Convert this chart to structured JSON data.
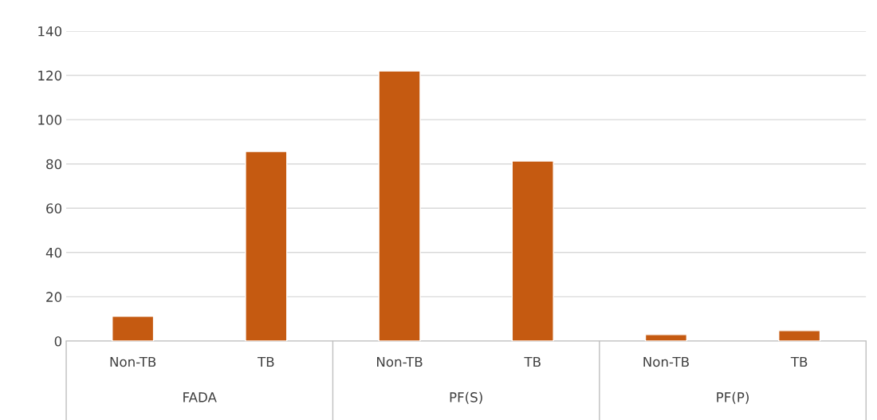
{
  "chart_data": {
    "type": "bar",
    "categories": [
      "Non-TB",
      "TB",
      "Non-TB",
      "TB",
      "Non-TB",
      "TB"
    ],
    "values": [
      11.2,
      85.6,
      122,
      81.3,
      2.9,
      4.7
    ],
    "color": "#c55a11",
    "ylim": [
      0,
      140
    ],
    "yticks": [
      0,
      20,
      40,
      60,
      80,
      100,
      120,
      140
    ],
    "grid": "y",
    "annotations": [
      "FADA",
      "PF(S)",
      "PF(P)"
    ]
  }
}
